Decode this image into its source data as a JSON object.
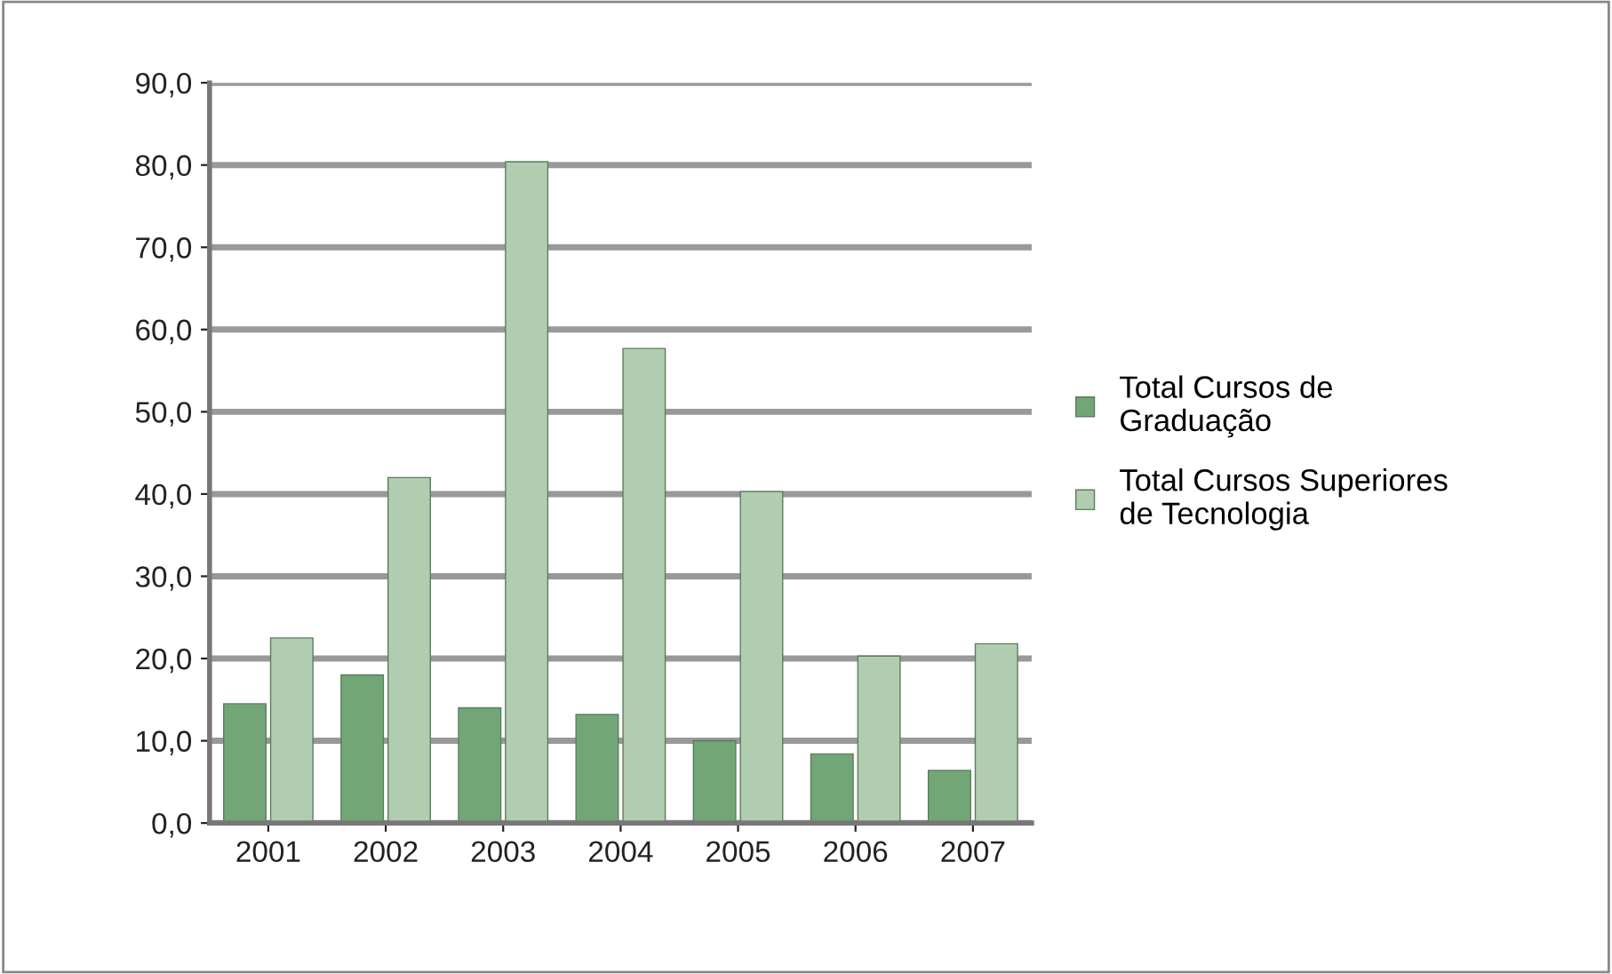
{
  "chart_data": {
    "type": "bar",
    "categories": [
      "2001",
      "2002",
      "2003",
      "2004",
      "2005",
      "2006",
      "2007"
    ],
    "series": [
      {
        "name": "Total Cursos de Graduação",
        "color": "#72a677",
        "values": [
          14.5,
          18,
          14,
          13.2,
          10,
          8.4,
          6.4
        ]
      },
      {
        "name": "Total Cursos Superiores de Tecnologia",
        "color": "#b0cdb0",
        "values": [
          22.5,
          42,
          80.4,
          57.7,
          40.3,
          20.3,
          21.8
        ]
      }
    ],
    "ylim": [
      0,
      90
    ],
    "yticks": [
      {
        "value": 0,
        "label": "0,0"
      },
      {
        "value": 10,
        "label": "10,0"
      },
      {
        "value": 20,
        "label": "20,0"
      },
      {
        "value": 30,
        "label": "30,0"
      },
      {
        "value": 40,
        "label": "40,0"
      },
      {
        "value": 50,
        "label": "50,0"
      },
      {
        "value": 60,
        "label": "60,0"
      },
      {
        "value": 70,
        "label": "70,0"
      },
      {
        "value": 80,
        "label": "80,0"
      },
      {
        "value": 90,
        "label": "90,0"
      }
    ],
    "grid": "y",
    "legend": "right"
  }
}
